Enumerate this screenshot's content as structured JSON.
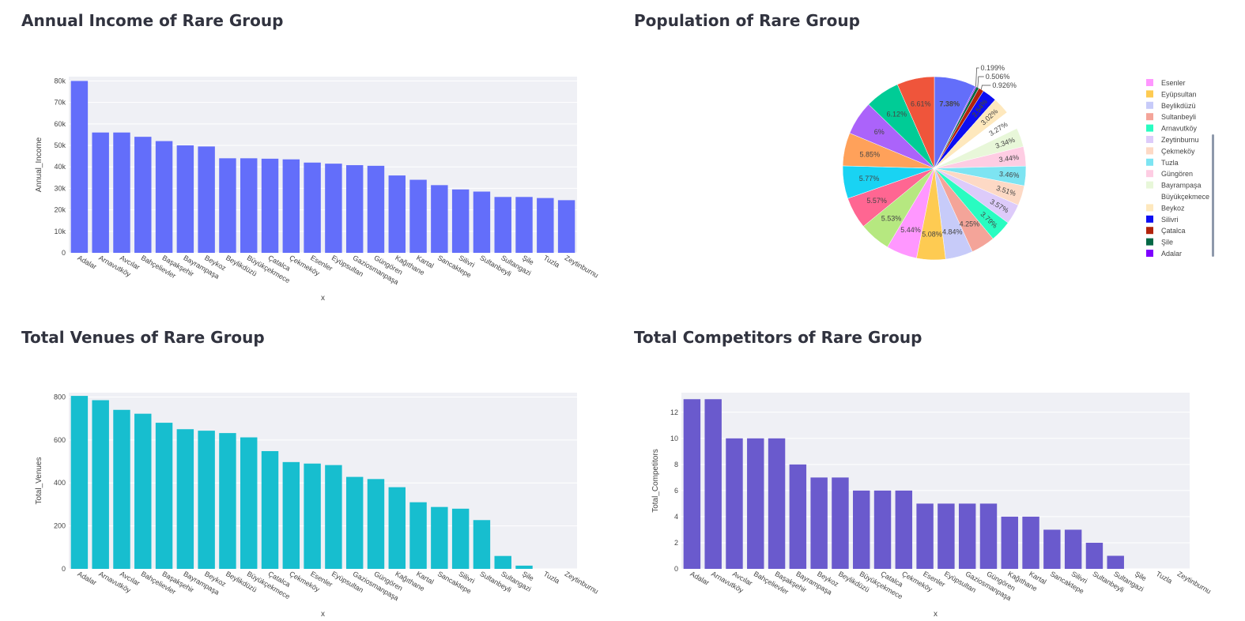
{
  "panels": {
    "income": {
      "title": "Annual Income of Rare Group"
    },
    "population": {
      "title": "Population of Rare Group"
    },
    "venues": {
      "title": "Total Venues of Rare Group"
    },
    "competitors": {
      "title": "Total Competitors of Rare Group"
    }
  },
  "colors": {
    "income": "#636efa",
    "venues": "#17becf",
    "competitors": "#6a5acd",
    "plot_bg": "#eff0f5",
    "grid": "#ffffff"
  },
  "chart_data": [
    {
      "id": "income",
      "type": "bar",
      "xlabel": "x",
      "ylabel": "Annual_Income",
      "ylim": [
        0,
        82000
      ],
      "yticks": [
        0,
        10000,
        20000,
        30000,
        40000,
        50000,
        60000,
        70000,
        80000
      ],
      "ytick_labels": [
        "0",
        "10k",
        "20k",
        "30k",
        "40k",
        "50k",
        "60k",
        "70k",
        "80k"
      ],
      "categories": [
        "Adalar",
        "Arnavutköy",
        "Avcılar",
        "Bahçelievler",
        "Başakşehir",
        "Bayrampaşa",
        "Beykoz",
        "Beylikdüzü",
        "Büyükçekmece",
        "Çatalca",
        "Çekmeköy",
        "Esenler",
        "Eyüpsultan",
        "Gaziosmanpaşa",
        "Güngören",
        "Kağıthane",
        "Kartal",
        "Sancaktepe",
        "Silivri",
        "Sultanbeyli",
        "Sultangazi",
        "Şile",
        "Tuzla",
        "Zeytinburnu"
      ],
      "values": [
        80000,
        56000,
        56000,
        54000,
        52000,
        50000,
        49500,
        44000,
        44000,
        43800,
        43500,
        42000,
        41500,
        40800,
        40500,
        36000,
        34000,
        31500,
        29500,
        28500,
        26000,
        26000,
        25500,
        24500
      ]
    },
    {
      "id": "population",
      "type": "pie",
      "slices": [
        {
          "label": "",
          "value": 7.38,
          "text": "7.38%",
          "color": "#636efa"
        },
        {
          "label": "Adalar",
          "value": 0.199,
          "text": "0.199%",
          "color": "#7e00ff"
        },
        {
          "label": "Şile",
          "value": 0.506,
          "text": "0.506%",
          "color": "#036845"
        },
        {
          "label": "Çatalca",
          "value": 0.926,
          "text": "0.926%",
          "color": "#b2230b"
        },
        {
          "label": "Silivri",
          "value": 2.54,
          "text": "2.54%",
          "color": "#0d0ef2"
        },
        {
          "label": "Beykoz",
          "value": 3.02,
          "text": "3.02%",
          "color": "#fee8bd"
        },
        {
          "label": "Büyükçekmece",
          "value": 3.27,
          "text": "3.27%",
          "color": "#ffffff"
        },
        {
          "label": "Bayrampaşa",
          "value": 3.34,
          "text": "3.34%",
          "color": "#e8f7d9"
        },
        {
          "label": "Güngören",
          "value": 3.44,
          "text": "3.44%",
          "color": "#fecde3"
        },
        {
          "label": "Tuzla",
          "value": 3.46,
          "text": "3.46%",
          "color": "#7de4f2"
        },
        {
          "label": "Çekmeköy",
          "value": 3.51,
          "text": "3.51%",
          "color": "#fdd9c5"
        },
        {
          "label": "Zeytinburnu",
          "value": 3.57,
          "text": "3.57%",
          "color": "#ddcbfa"
        },
        {
          "label": "Arnavutköy",
          "value": 3.79,
          "text": "3.79%",
          "color": "#29fcc1"
        },
        {
          "label": "Sultanbeyli",
          "value": 4.25,
          "text": "4.25%",
          "color": "#f4a499"
        },
        {
          "label": "Beylikdüzü",
          "value": 4.84,
          "text": "4.84%",
          "color": "#c7cbf9"
        },
        {
          "label": "Eyüpsultan",
          "value": 5.08,
          "text": "5.08%",
          "color": "#fecb52"
        },
        {
          "label": "Esenler",
          "value": 5.44,
          "text": "5.44%",
          "color": "#ff97ff"
        },
        {
          "label": "",
          "value": 5.53,
          "text": "5.53%",
          "color": "#b6e880"
        },
        {
          "label": "",
          "value": 5.57,
          "text": "5.57%",
          "color": "#ff6692"
        },
        {
          "label": "",
          "value": 5.77,
          "text": "5.77%",
          "color": "#19d3f3"
        },
        {
          "label": "",
          "value": 5.85,
          "text": "5.85%",
          "color": "#ffa15a"
        },
        {
          "label": "",
          "value": 6.0,
          "text": "6%",
          "color": "#ab63fa"
        },
        {
          "label": "",
          "value": 6.12,
          "text": "6.12%",
          "color": "#00cc96"
        },
        {
          "label": "",
          "value": 6.61,
          "text": "6.61%",
          "color": "#ef553b"
        }
      ],
      "legend": [
        {
          "label": "Esenler",
          "color": "#ff97ff"
        },
        {
          "label": "Eyüpsultan",
          "color": "#fecb52"
        },
        {
          "label": "Beylikdüzü",
          "color": "#c7cbf9"
        },
        {
          "label": "Sultanbeyli",
          "color": "#f4a499"
        },
        {
          "label": "Arnavutköy",
          "color": "#29fcc1"
        },
        {
          "label": "Zeytinburnu",
          "color": "#ddcbfa"
        },
        {
          "label": "Çekmeköy",
          "color": "#fdd9c5"
        },
        {
          "label": "Tuzla",
          "color": "#7de4f2"
        },
        {
          "label": "Güngören",
          "color": "#fecde3"
        },
        {
          "label": "Bayrampaşa",
          "color": "#e8f7d9"
        },
        {
          "label": "Büyükçekmece",
          "color": "#ffffff"
        },
        {
          "label": "Beykoz",
          "color": "#fee8bd"
        },
        {
          "label": "Silivri",
          "color": "#0d0ef2"
        },
        {
          "label": "Çatalca",
          "color": "#b2230b"
        },
        {
          "label": "Şile",
          "color": "#036845"
        },
        {
          "label": "Adalar",
          "color": "#7e00ff"
        }
      ],
      "legend_position": "right"
    },
    {
      "id": "venues",
      "type": "bar",
      "xlabel": "x",
      "ylabel": "Total_Venues",
      "ylim": [
        0,
        820
      ],
      "yticks": [
        0,
        200,
        400,
        600,
        800
      ],
      "ytick_labels": [
        "0",
        "200",
        "400",
        "600",
        "800"
      ],
      "categories": [
        "Adalar",
        "Arnavutköy",
        "Avcılar",
        "Bahçelievler",
        "Başakşehir",
        "Bayrampaşa",
        "Beykoz",
        "Beylikdüzü",
        "Büyükçekmece",
        "Çatalca",
        "Çekmeköy",
        "Esenler",
        "Eyüpsultan",
        "Gaziosmanpaşa",
        "Güngören",
        "Kağıthane",
        "Kartal",
        "Sancaktepe",
        "Silivri",
        "Sultanbeyli",
        "Sultangazi",
        "Şile",
        "Tuzla",
        "Zeytinburnu"
      ],
      "values": [
        805,
        785,
        740,
        722,
        680,
        650,
        643,
        632,
        612,
        548,
        497,
        490,
        483,
        428,
        418,
        380,
        310,
        288,
        280,
        227,
        60,
        15,
        0,
        0
      ]
    },
    {
      "id": "competitors",
      "type": "bar",
      "xlabel": "x",
      "ylabel": "Total_Competitors",
      "ylim": [
        0,
        13.5
      ],
      "yticks": [
        0,
        2,
        4,
        6,
        8,
        10,
        12
      ],
      "ytick_labels": [
        "0",
        "2",
        "4",
        "6",
        "8",
        "10",
        "12"
      ],
      "categories": [
        "Adalar",
        "Arnavutköy",
        "Avcılar",
        "Bahçelievler",
        "Başakşehir",
        "Bayrampaşa",
        "Beykoz",
        "Beylikdüzü",
        "Büyükçekmece",
        "Çatalca",
        "Çekmeköy",
        "Esenler",
        "Eyüpsultan",
        "Gaziosmanpaşa",
        "Güngören",
        "Kağıthane",
        "Kartal",
        "Sancaktepe",
        "Silivri",
        "Sultanbeyli",
        "Sultangazi",
        "Şile",
        "Tuzla",
        "Zeytinburnu"
      ],
      "values": [
        13,
        13,
        10,
        10,
        10,
        8,
        7,
        7,
        6,
        6,
        6,
        5,
        5,
        5,
        5,
        4,
        4,
        3,
        3,
        2,
        1,
        0,
        0,
        0
      ]
    }
  ]
}
